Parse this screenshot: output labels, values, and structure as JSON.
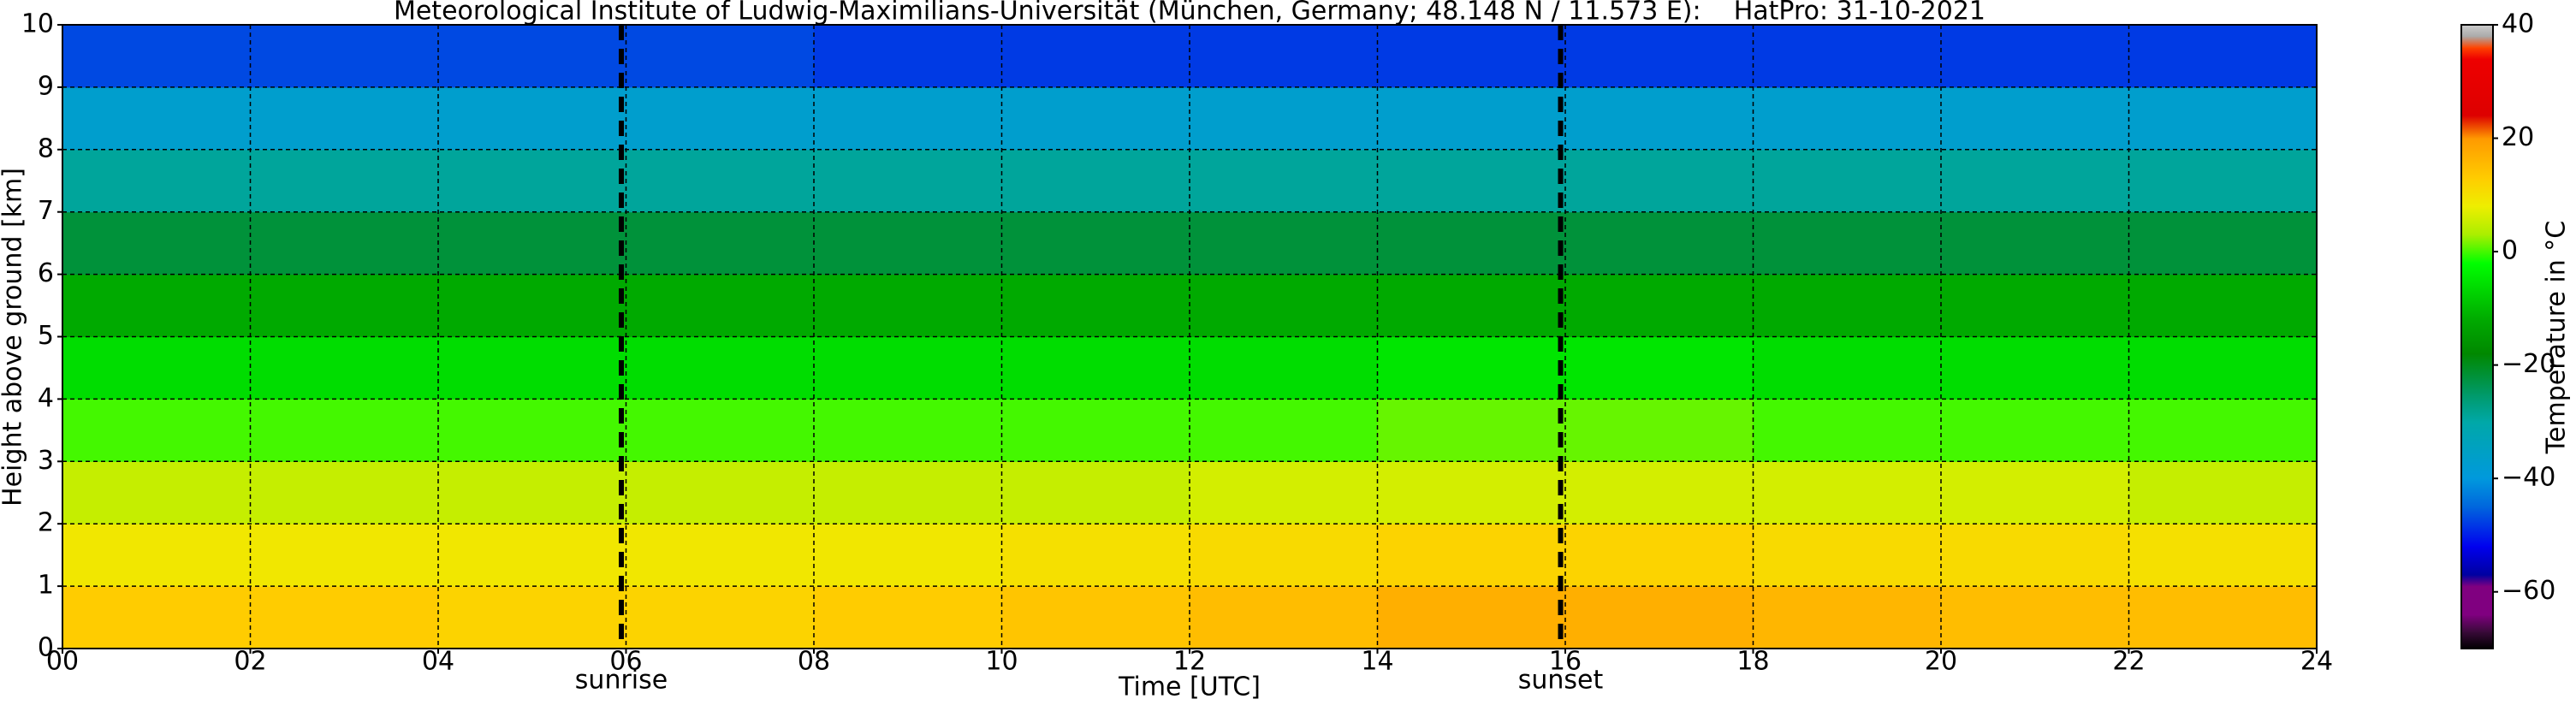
{
  "chart_data": {
    "type": "heatmap",
    "title": "Meteorological Institute of Ludwig-Maximilians-Universität (München, Germany; 48.148 N / 11.573 E):    HatPro: 31-10-2021",
    "xlabel": "Time [UTC]",
    "ylabel": "Height above ground [km]",
    "colorbar_label": "Temperature in °C",
    "x_edges": [
      0,
      2,
      4,
      6,
      8,
      10,
      12,
      14,
      16,
      18,
      20,
      22,
      24
    ],
    "y_edges": [
      0,
      1,
      2,
      3,
      4,
      5,
      6,
      7,
      8,
      9,
      10
    ],
    "z": [
      [
        13,
        13,
        12,
        12,
        13,
        14,
        15,
        17,
        17,
        16,
        15,
        15
      ],
      [
        9,
        9,
        9,
        9,
        9,
        10,
        11,
        12,
        12,
        11,
        11,
        10
      ],
      [
        5,
        5,
        5,
        5,
        5,
        5,
        6,
        6,
        6,
        6,
        6,
        5
      ],
      [
        0,
        0,
        0,
        0,
        0,
        0,
        0,
        1,
        1,
        0,
        0,
        0
      ],
      [
        -6,
        -6,
        -6,
        -6,
        -6,
        -6,
        -6,
        -5,
        -5,
        -6,
        -6,
        -6
      ],
      [
        -12,
        -12,
        -12,
        -12,
        -12,
        -12,
        -12,
        -12,
        -12,
        -12,
        -12,
        -12
      ],
      [
        -22,
        -22,
        -22,
        -22,
        -22,
        -22,
        -22,
        -22,
        -22,
        -22,
        -22,
        -22
      ],
      [
        -29,
        -29,
        -29,
        -29,
        -29,
        -29,
        -29,
        -29,
        -29,
        -29,
        -29,
        -29
      ],
      [
        -37,
        -37,
        -37,
        -37,
        -37,
        -37,
        -37,
        -37,
        -37,
        -37,
        -37,
        -37
      ],
      [
        -47,
        -47,
        -47,
        -47,
        -48,
        -48,
        -48,
        -48,
        -48,
        -48,
        -48,
        -48
      ]
    ],
    "xlim": [
      0,
      24
    ],
    "ylim": [
      0,
      10
    ],
    "xticks": [
      {
        "value": 0,
        "label": "00"
      },
      {
        "value": 2,
        "label": "02"
      },
      {
        "value": 4,
        "label": "04"
      },
      {
        "value": 6,
        "label": "06"
      },
      {
        "value": 8,
        "label": "08"
      },
      10,
      12,
      14,
      16,
      18,
      20,
      22,
      24
    ],
    "yticks": [
      0,
      1,
      2,
      3,
      4,
      5,
      6,
      7,
      8,
      9,
      10
    ],
    "clim": [
      -70,
      40
    ],
    "cticks": [
      {
        "value": -60,
        "label": "−60"
      },
      {
        "value": -40,
        "label": "−40"
      },
      {
        "value": -20,
        "label": "−20"
      },
      0,
      20,
      40
    ],
    "colorscale": [
      {
        "value": -70,
        "color": "#000000"
      },
      {
        "value": -67,
        "color": "#3a0a3a"
      },
      {
        "value": -64,
        "color": "#800080"
      },
      {
        "value": -59,
        "color": "#800080"
      },
      {
        "value": -57,
        "color": "#0000a0"
      },
      {
        "value": -52,
        "color": "#0000ee"
      },
      {
        "value": -45,
        "color": "#0066dd"
      },
      {
        "value": -40,
        "color": "#0099dd"
      },
      {
        "value": -30,
        "color": "#00a8a8"
      },
      {
        "value": -25,
        "color": "#009966"
      },
      {
        "value": -18,
        "color": "#008800"
      },
      {
        "value": -12,
        "color": "#00aa00"
      },
      {
        "value": -6,
        "color": "#00dd00"
      },
      {
        "value": -2,
        "color": "#00ff00"
      },
      {
        "value": 3,
        "color": "#aaee00"
      },
      {
        "value": 8,
        "color": "#eeee00"
      },
      {
        "value": 13,
        "color": "#ffcc00"
      },
      {
        "value": 20,
        "color": "#ff9900"
      },
      {
        "value": 24,
        "color": "#dd0000"
      },
      {
        "value": 34,
        "color": "#ee0000"
      },
      {
        "value": 36,
        "color": "#ff4400"
      },
      {
        "value": 38,
        "color": "#aaaaaa"
      },
      {
        "value": 40,
        "color": "#cccccc"
      }
    ],
    "grid": true,
    "annotations": [
      {
        "text": "sunrise",
        "x": 5.95
      },
      {
        "text": "sunset",
        "x": 15.95
      }
    ]
  }
}
